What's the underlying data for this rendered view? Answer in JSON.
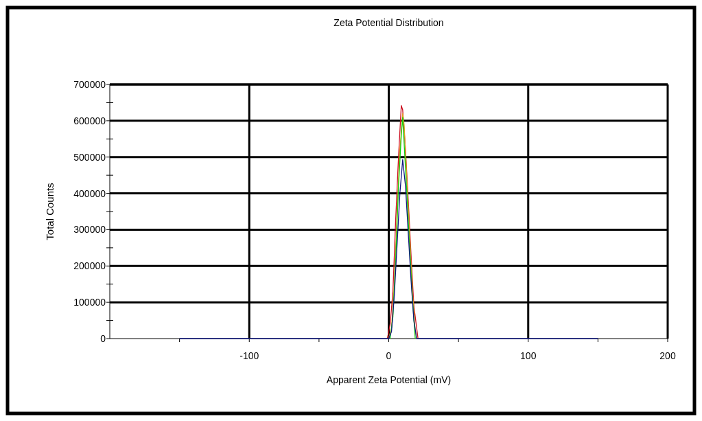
{
  "chart_data": {
    "type": "line",
    "title": "Zeta Potential Distribution",
    "xlabel": "Apparent Zeta Potential (mV)",
    "ylabel": "Total Counts",
    "xlim": [
      -200,
      200
    ],
    "xticks": [
      {
        "value": -150,
        "label": null
      },
      -100,
      {
        "value": -50,
        "label": null
      },
      0,
      {
        "value": 50,
        "label": null
      },
      100,
      {
        "value": 150,
        "label": null
      },
      200
    ],
    "ylim": [
      0,
      700000
    ],
    "yticks": [
      0,
      {
        "value": 50000,
        "label": null
      },
      100000,
      {
        "value": 150000,
        "label": null
      },
      200000,
      {
        "value": 250000,
        "label": null
      },
      300000,
      {
        "value": 350000,
        "label": null
      },
      400000,
      {
        "value": 450000,
        "label": null
      },
      500000,
      {
        "value": 550000,
        "label": null
      },
      600000,
      {
        "value": 650000,
        "label": null
      },
      700000
    ],
    "grid": true,
    "series": [
      {
        "color": "#cc1020",
        "x": [
          -1,
          1,
          3,
          5,
          7,
          9,
          10,
          12,
          14,
          16,
          18,
          21
        ],
        "values": [
          0,
          40000,
          130000,
          330000,
          500000,
          642000,
          630000,
          520000,
          380000,
          230000,
          90000,
          0
        ]
      },
      {
        "color": "#e0a020",
        "x": [
          0,
          2,
          4,
          6,
          8,
          10,
          11,
          13,
          15,
          17,
          19,
          20
        ],
        "values": [
          0,
          30000,
          150000,
          350000,
          520000,
          620000,
          590000,
          440000,
          280000,
          130000,
          20000,
          0
        ]
      },
      {
        "color": "#10d010",
        "x": [
          1,
          3,
          5,
          7,
          9,
          10,
          11,
          13,
          15,
          17,
          19
        ],
        "values": [
          0,
          60000,
          220000,
          420000,
          560000,
          609000,
          540000,
          400000,
          250000,
          110000,
          0
        ]
      },
      {
        "color": "#101880",
        "x": [
          -150,
          0,
          2,
          4,
          6,
          8,
          10,
          12,
          14,
          16,
          18,
          20,
          150
        ],
        "values": [
          0,
          0,
          20000,
          120000,
          260000,
          400000,
          493000,
          420000,
          290000,
          160000,
          50000,
          0,
          0
        ]
      }
    ]
  }
}
